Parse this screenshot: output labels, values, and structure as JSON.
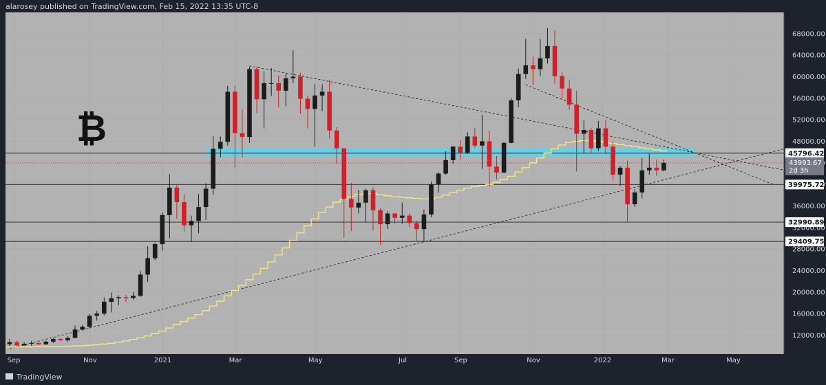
{
  "header": {
    "text": "alarosey published on TradingView.com, Feb 15, 2022 13:35 UTC-8"
  },
  "footer": {
    "brand": "TradingView"
  },
  "symbol_glyph": "₿",
  "colors": {
    "plot_bg": "#b2b2b2",
    "frame_bg": "#1e222d",
    "up": "#1c1c1c",
    "down": "#d0202a",
    "ma": "#f5e58a",
    "zone": "#5fd0e8"
  },
  "chart_data": {
    "type": "candlestick",
    "title": "",
    "xlabel": "",
    "ylabel": "",
    "ylim": [
      9000,
      69000
    ],
    "yticks": [
      "12000.00",
      "16000.00",
      "20000.00",
      "24000.00",
      "28000.00",
      "32000.00",
      "36000.00",
      "40000.00",
      "44000.00",
      "48000.00",
      "52000.00",
      "56000.00",
      "60000.00",
      "64000.00",
      "68000.00"
    ],
    "x_labels": [
      "Sep",
      "Nov",
      "2021",
      "Mar",
      "May",
      "Jul",
      "Sep",
      "Nov",
      "2022",
      "Mar",
      "May"
    ],
    "levels": [
      {
        "price": 45796.42,
        "label": "45796.42"
      },
      {
        "price": 39975.72,
        "label": "39975.72"
      },
      {
        "price": 32990.89,
        "label": "32990.89"
      },
      {
        "price": 29409.75,
        "label": "29409.75"
      }
    ],
    "current": {
      "price": 43993.67,
      "label": "43993.67",
      "countdown": "2d 3h"
    },
    "zone": [
      45200,
      46800
    ],
    "ohlc": [
      [
        10300,
        11300,
        9950,
        10700
      ],
      [
        10700,
        11000,
        9900,
        10100
      ],
      [
        10100,
        10700,
        10000,
        10400
      ],
      [
        10400,
        10950,
        10050,
        10550
      ],
      [
        10550,
        10600,
        10150,
        10300
      ],
      [
        10300,
        10950,
        10200,
        10800
      ],
      [
        10800,
        11450,
        10550,
        11300
      ],
      [
        11300,
        11450,
        10900,
        11050
      ],
      [
        11050,
        11750,
        10800,
        11500
      ],
      [
        11500,
        13800,
        11400,
        13050
      ],
      [
        13050,
        13850,
        12900,
        13550
      ],
      [
        13550,
        15900,
        13250,
        15600
      ],
      [
        15600,
        16500,
        14700,
        16000
      ],
      [
        16000,
        19000,
        15700,
        18200
      ],
      [
        18200,
        19900,
        16200,
        18850
      ],
      [
        18850,
        19400,
        17600,
        19050
      ],
      [
        19050,
        19450,
        18200,
        18900
      ],
      [
        18900,
        20000,
        18600,
        19300
      ],
      [
        19300,
        23900,
        19100,
        23250
      ],
      [
        23250,
        28500,
        21900,
        26300
      ],
      [
        26300,
        29200,
        25900,
        28900
      ],
      [
        28900,
        34800,
        27700,
        34300
      ],
      [
        34300,
        41900,
        30000,
        39400
      ],
      [
        39400,
        40100,
        33600,
        36700
      ],
      [
        36700,
        38200,
        31200,
        32400
      ],
      [
        32400,
        34200,
        29300,
        33200
      ],
      [
        33200,
        38200,
        30900,
        35800
      ],
      [
        35800,
        40200,
        33400,
        39200
      ],
      [
        39200,
        49000,
        38000,
        46600
      ],
      [
        46600,
        48900,
        45000,
        47900
      ],
      [
        47900,
        58300,
        47200,
        57200
      ],
      [
        57200,
        58400,
        43100,
        49500
      ],
      [
        49500,
        54000,
        45000,
        48800
      ],
      [
        48800,
        61800,
        47700,
        61400
      ],
      [
        61400,
        61800,
        53200,
        55800
      ],
      [
        55800,
        61000,
        50400,
        58800
      ],
      [
        58800,
        61600,
        56400,
        58800
      ],
      [
        58800,
        60200,
        54300,
        57400
      ],
      [
        57400,
        60600,
        54500,
        59700
      ],
      [
        59700,
        64900,
        58800,
        60000
      ],
      [
        60000,
        60700,
        53100,
        55900
      ],
      [
        55900,
        56500,
        50400,
        54000
      ],
      [
        54000,
        58600,
        47000,
        56500
      ],
      [
        56500,
        58600,
        53600,
        57200
      ],
      [
        57200,
        59400,
        48500,
        50000
      ],
      [
        50000,
        50600,
        43800,
        46700
      ],
      [
        46700,
        46700,
        30100,
        37300
      ],
      [
        37300,
        40300,
        31300,
        35700
      ],
      [
        35700,
        38900,
        34600,
        36600
      ],
      [
        36600,
        39200,
        32900,
        38900
      ],
      [
        38900,
        39400,
        31400,
        35200
      ],
      [
        35200,
        35600,
        28800,
        32600
      ],
      [
        32600,
        35000,
        31700,
        34600
      ],
      [
        34600,
        34700,
        32700,
        33800
      ],
      [
        33800,
        36600,
        32700,
        34200
      ],
      [
        34200,
        34600,
        32100,
        32800
      ],
      [
        32800,
        33300,
        29300,
        31700
      ],
      [
        31700,
        35300,
        29400,
        34400
      ],
      [
        34400,
        40500,
        33900,
        40000
      ],
      [
        40000,
        42300,
        38500,
        42000
      ],
      [
        42000,
        46100,
        41800,
        44500
      ],
      [
        44500,
        47100,
        43800,
        47000
      ],
      [
        47000,
        48200,
        44600,
        45900
      ],
      [
        45900,
        49700,
        45600,
        48900
      ],
      [
        48900,
        50400,
        46800,
        47200
      ],
      [
        47200,
        52900,
        42900,
        48000
      ],
      [
        48000,
        49900,
        39600,
        43300
      ],
      [
        43300,
        45300,
        40900,
        42200
      ],
      [
        42200,
        47900,
        42100,
        47700
      ],
      [
        47700,
        56000,
        47600,
        55600
      ],
      [
        55600,
        61500,
        54300,
        60500
      ],
      [
        60500,
        67000,
        59600,
        62100
      ],
      [
        62100,
        63700,
        58400,
        61400
      ],
      [
        61400,
        67000,
        60100,
        63400
      ],
      [
        63400,
        69000,
        62400,
        65700
      ],
      [
        65700,
        68600,
        58700,
        60100
      ],
      [
        60100,
        60800,
        56000,
        57800
      ],
      [
        57800,
        59400,
        53800,
        54800
      ],
      [
        54800,
        57400,
        42400,
        49400
      ],
      [
        49400,
        51900,
        45800,
        50100
      ],
      [
        50100,
        50500,
        45700,
        46700
      ],
      [
        46700,
        51800,
        46200,
        50400
      ],
      [
        50400,
        51900,
        45600,
        47000
      ],
      [
        47000,
        47900,
        40700,
        41800
      ],
      [
        41800,
        43400,
        39700,
        43100
      ],
      [
        43100,
        44400,
        33100,
        36300
      ],
      [
        36300,
        39100,
        35800,
        38500
      ],
      [
        38500,
        44900,
        37400,
        42600
      ],
      [
        42600,
        45700,
        41800,
        43100
      ],
      [
        43100,
        44600,
        41600,
        42600
      ],
      [
        42600,
        44600,
        42400,
        43993.67
      ]
    ],
    "ma": [
      9800,
      9810,
      9830,
      9840,
      9860,
      9880,
      9900,
      9920,
      9950,
      9990,
      10050,
      10120,
      10220,
      10340,
      10500,
      10700,
      10930,
      11200,
      11500,
      11860,
      12280,
      12760,
      13320,
      13940,
      14550,
      15150,
      15800,
      16550,
      17400,
      18300,
      19300,
      20300,
      21250,
      22300,
      23350,
      24400,
      25600,
      26900,
      28200,
      29600,
      31000,
      32300,
      33600,
      34800,
      35800,
      36700,
      37300,
      37700,
      38100,
      38300,
      38300,
      38100,
      37900,
      37700,
      37600,
      37500,
      37400,
      37300,
      37300,
      37600,
      38000,
      38500,
      38900,
      39300,
      39600,
      39800,
      40000,
      40400,
      40900,
      41500,
      42300,
      43100,
      44000,
      44900,
      45800,
      46600,
      47300,
      47800,
      48000,
      48100,
      48100,
      48000,
      47800,
      47600,
      47400,
      47200,
      47000,
      46800,
      46600,
      46400,
      46200
    ],
    "trendlines": [
      {
        "name": "descending-resistance-1",
        "from": {
          "i": 33,
          "price": 62000
        },
        "to": {
          "i": 109,
          "price": 42000
        }
      },
      {
        "name": "descending-resistance-2",
        "from": {
          "i": 71,
          "price": 58500
        },
        "to": {
          "i": 105,
          "price": 40000
        }
      },
      {
        "name": "rising-support",
        "from": {
          "i": 0,
          "price": 9500
        },
        "to": {
          "i": 112,
          "price": 48500
        }
      }
    ]
  }
}
